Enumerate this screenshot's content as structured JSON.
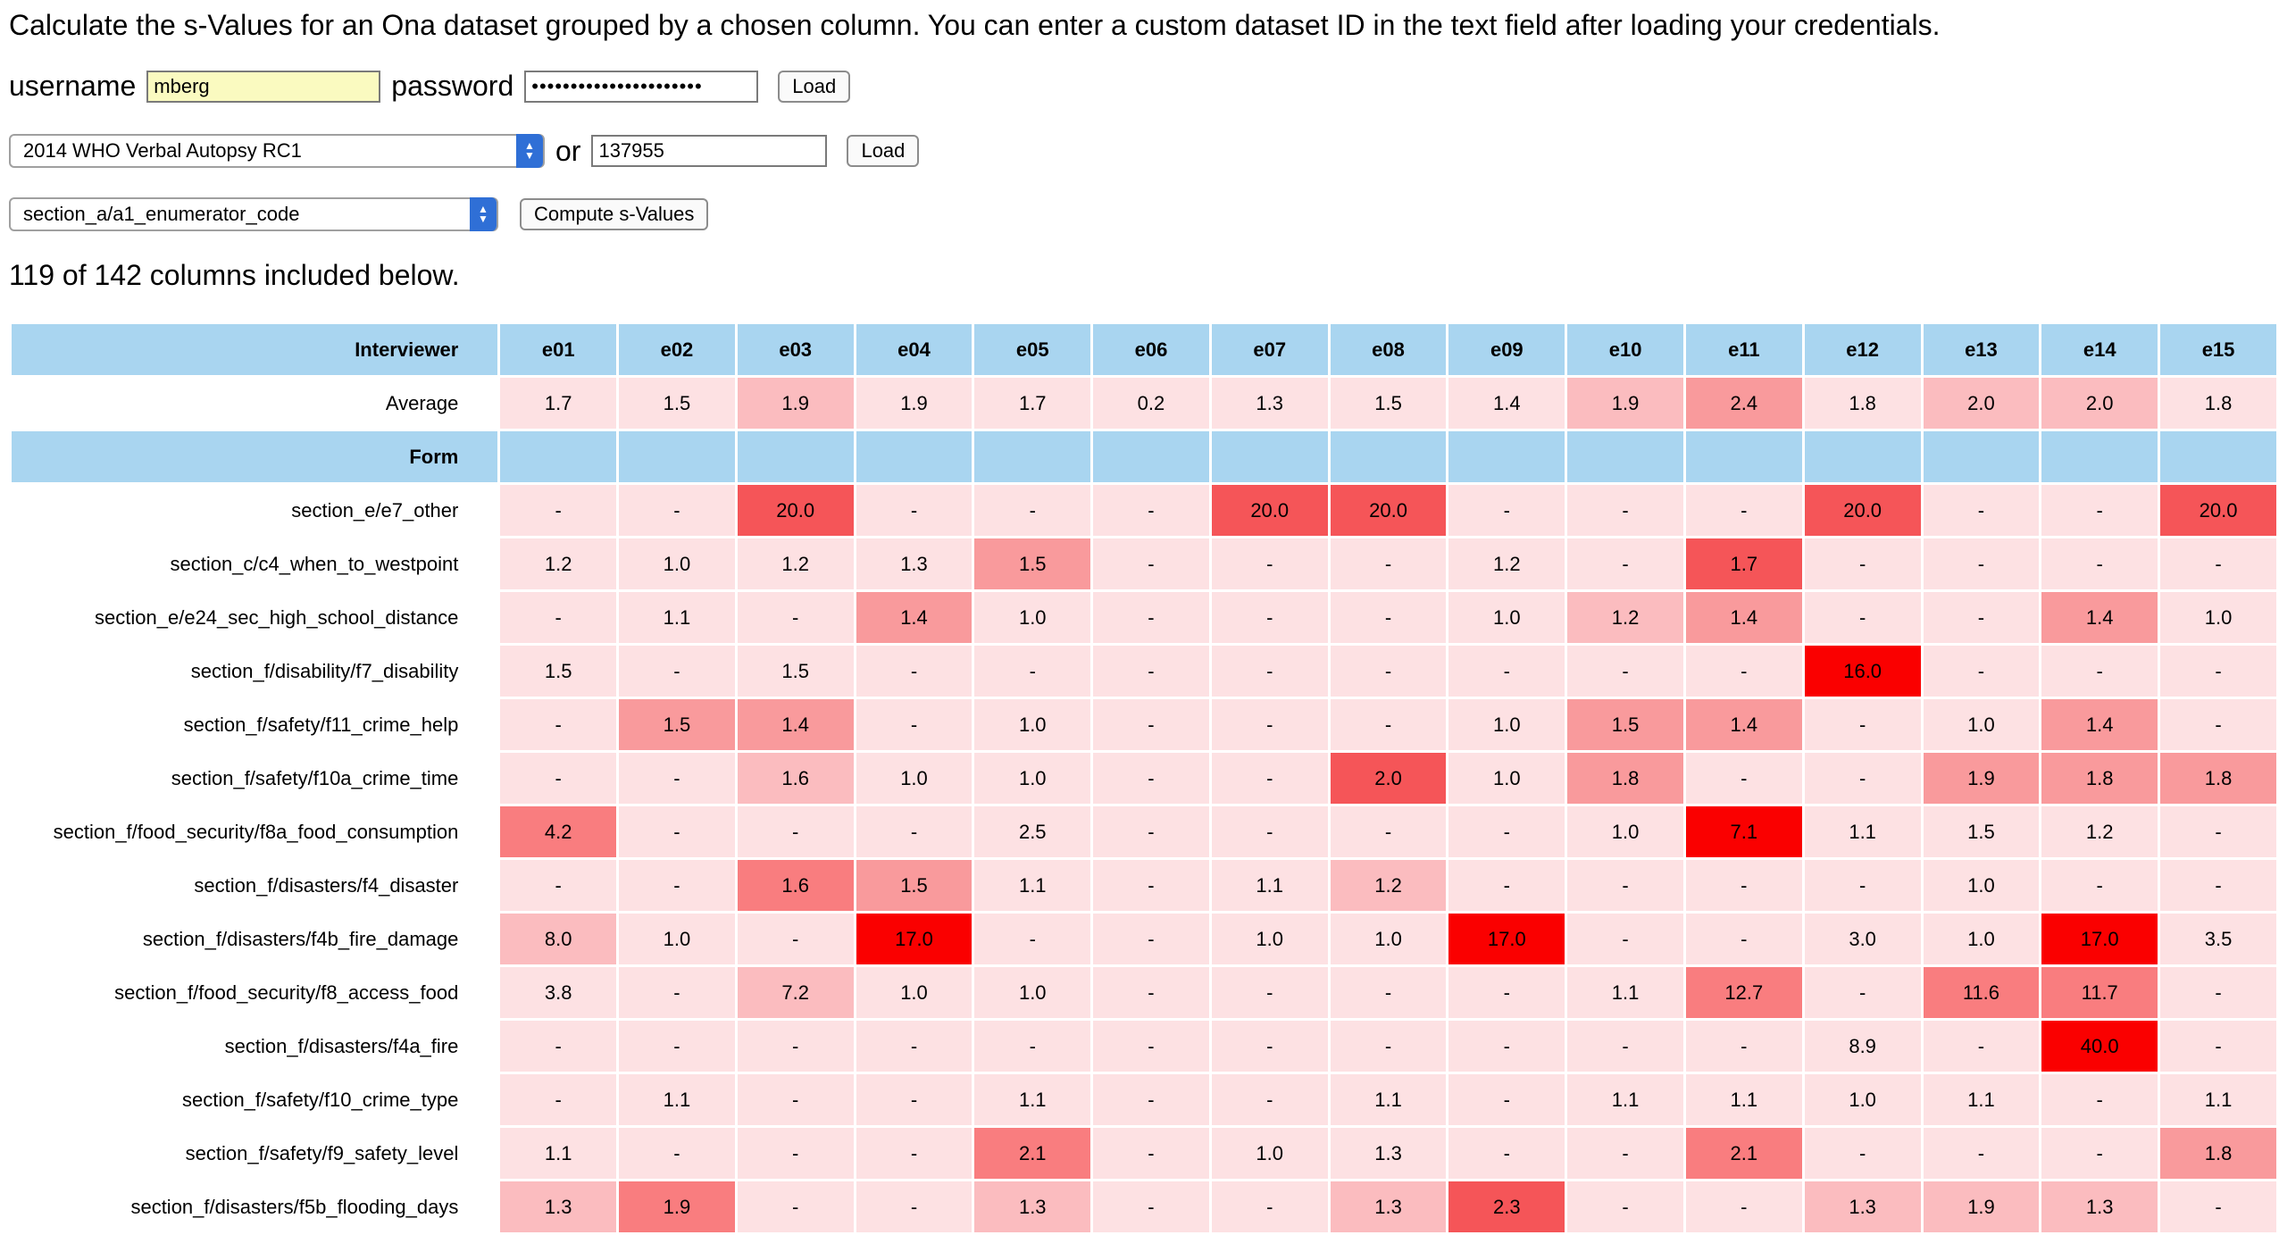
{
  "intro": "Calculate the s-Values for an Ona dataset grouped by a chosen column. You can enter a custom dataset ID in the text field after loading your credentials.",
  "credentials": {
    "username_label": "username",
    "username_value": "mberg",
    "password_label": "password",
    "password_value": "••••••••••••••••••••••",
    "load_label": "Load"
  },
  "dataset": {
    "selected": "2014 WHO Verbal Autopsy RC1",
    "or_label": "or",
    "id_value": "137955",
    "load_label": "Load"
  },
  "group": {
    "selected": "section_a/a1_enumerator_code",
    "compute_label": "Compute s-Values"
  },
  "summary": "119 of 142 columns included below.",
  "table": {
    "interviewer_label": "Interviewer",
    "average_label": "Average",
    "form_label": "Form",
    "interviewers": [
      "e01",
      "e02",
      "e03",
      "e04",
      "e05",
      "e06",
      "e07",
      "e08",
      "e09",
      "e10",
      "e11",
      "e12",
      "e13",
      "e14",
      "e15"
    ],
    "averages": [
      "1.7",
      "1.5",
      "1.9",
      "1.9",
      "1.7",
      "0.2",
      "1.3",
      "1.5",
      "1.4",
      "1.9",
      "2.4",
      "1.8",
      "2.0",
      "2.0",
      "1.8"
    ],
    "rows": [
      {
        "label": "section_e/e7_other",
        "values": [
          "-",
          "-",
          "20.0",
          "-",
          "-",
          "-",
          "20.0",
          "20.0",
          "-",
          "-",
          "-",
          "20.0",
          "-",
          "-",
          "20.0"
        ]
      },
      {
        "label": "section_c/c4_when_to_westpoint",
        "values": [
          "1.2",
          "1.0",
          "1.2",
          "1.3",
          "1.5",
          "-",
          "-",
          "-",
          "1.2",
          "-",
          "1.7",
          "-",
          "-",
          "-",
          "-"
        ]
      },
      {
        "label": "section_e/e24_sec_high_school_distance",
        "values": [
          "-",
          "1.1",
          "-",
          "1.4",
          "1.0",
          "-",
          "-",
          "-",
          "1.0",
          "1.2",
          "1.4",
          "-",
          "-",
          "1.4",
          "1.0"
        ]
      },
      {
        "label": "section_f/disability/f7_disability",
        "values": [
          "1.5",
          "-",
          "1.5",
          "-",
          "-",
          "-",
          "-",
          "-",
          "-",
          "-",
          "-",
          "16.0",
          "-",
          "-",
          "-"
        ]
      },
      {
        "label": "section_f/safety/f11_crime_help",
        "values": [
          "-",
          "1.5",
          "1.4",
          "-",
          "1.0",
          "-",
          "-",
          "-",
          "1.0",
          "1.5",
          "1.4",
          "-",
          "1.0",
          "1.4",
          "-"
        ]
      },
      {
        "label": "section_f/safety/f10a_crime_time",
        "values": [
          "-",
          "-",
          "1.6",
          "1.0",
          "1.0",
          "-",
          "-",
          "2.0",
          "1.0",
          "1.8",
          "-",
          "-",
          "1.9",
          "1.8",
          "1.8"
        ]
      },
      {
        "label": "section_f/food_security/f8a_food_consumption",
        "values": [
          "4.2",
          "-",
          "-",
          "-",
          "2.5",
          "-",
          "-",
          "-",
          "-",
          "1.0",
          "7.1",
          "1.1",
          "1.5",
          "1.2",
          "-"
        ]
      },
      {
        "label": "section_f/disasters/f4_disaster",
        "values": [
          "-",
          "-",
          "1.6",
          "1.5",
          "1.1",
          "-",
          "1.1",
          "1.2",
          "-",
          "-",
          "-",
          "-",
          "1.0",
          "-",
          "-"
        ]
      },
      {
        "label": "section_f/disasters/f4b_fire_damage",
        "values": [
          "8.0",
          "1.0",
          "-",
          "17.0",
          "-",
          "-",
          "1.0",
          "1.0",
          "17.0",
          "-",
          "-",
          "3.0",
          "1.0",
          "17.0",
          "3.5"
        ]
      },
      {
        "label": "section_f/food_security/f8_access_food",
        "values": [
          "3.8",
          "-",
          "7.2",
          "1.0",
          "1.0",
          "-",
          "-",
          "-",
          "-",
          "1.1",
          "12.7",
          "-",
          "11.6",
          "11.7",
          "-"
        ]
      },
      {
        "label": "section_f/disasters/f4a_fire",
        "values": [
          "-",
          "-",
          "-",
          "-",
          "-",
          "-",
          "-",
          "-",
          "-",
          "-",
          "-",
          "8.9",
          "-",
          "40.0",
          "-"
        ]
      },
      {
        "label": "section_f/safety/f10_crime_type",
        "values": [
          "-",
          "1.1",
          "-",
          "-",
          "1.1",
          "-",
          "-",
          "1.1",
          "-",
          "1.1",
          "1.1",
          "1.0",
          "1.1",
          "-",
          "1.1"
        ]
      },
      {
        "label": "section_f/safety/f9_safety_level",
        "values": [
          "1.1",
          "-",
          "-",
          "-",
          "2.1",
          "-",
          "1.0",
          "1.3",
          "-",
          "-",
          "2.1",
          "-",
          "-",
          "-",
          "1.8"
        ]
      },
      {
        "label": "section_f/disasters/f5b_flooding_days",
        "values": [
          "1.3",
          "1.9",
          "-",
          "-",
          "1.3",
          "-",
          "-",
          "1.3",
          "2.3",
          "-",
          "-",
          "1.3",
          "1.9",
          "1.3",
          "-"
        ]
      }
    ],
    "shades": {
      "base": "#fde1e3",
      "light": "#fbbcbf",
      "mid": "#f99a9c",
      "strong": "#f97d7f",
      "darker": "#f55558",
      "max": "#fa0000"
    },
    "row_shades": [
      [
        "base",
        "base",
        "darker",
        "base",
        "base",
        "base",
        "darker",
        "darker",
        "base",
        "base",
        "base",
        "darker",
        "base",
        "base",
        "darker"
      ],
      [
        "base",
        "base",
        "base",
        "base",
        "mid",
        "base",
        "base",
        "base",
        "base",
        "base",
        "darker",
        "base",
        "base",
        "base",
        "base"
      ],
      [
        "base",
        "base",
        "base",
        "mid",
        "base",
        "base",
        "base",
        "base",
        "base",
        "light",
        "mid",
        "base",
        "base",
        "mid",
        "base"
      ],
      [
        "base",
        "base",
        "base",
        "base",
        "base",
        "base",
        "base",
        "base",
        "base",
        "base",
        "base",
        "max",
        "base",
        "base",
        "base"
      ],
      [
        "base",
        "mid",
        "mid",
        "base",
        "base",
        "base",
        "base",
        "base",
        "base",
        "mid",
        "mid",
        "base",
        "base",
        "mid",
        "base"
      ],
      [
        "base",
        "base",
        "light",
        "base",
        "base",
        "base",
        "base",
        "darker",
        "base",
        "mid",
        "base",
        "base",
        "mid",
        "mid",
        "mid"
      ],
      [
        "strong",
        "base",
        "base",
        "base",
        "base",
        "base",
        "base",
        "base",
        "base",
        "base",
        "max",
        "base",
        "base",
        "base",
        "base"
      ],
      [
        "base",
        "base",
        "strong",
        "mid",
        "base",
        "base",
        "base",
        "light",
        "base",
        "base",
        "base",
        "base",
        "base",
        "base",
        "base"
      ],
      [
        "light",
        "base",
        "base",
        "max",
        "base",
        "base",
        "base",
        "base",
        "max",
        "base",
        "base",
        "base",
        "base",
        "max",
        "base"
      ],
      [
        "base",
        "base",
        "light",
        "base",
        "base",
        "base",
        "base",
        "base",
        "base",
        "base",
        "strong",
        "base",
        "strong",
        "strong",
        "base"
      ],
      [
        "base",
        "base",
        "base",
        "base",
        "base",
        "base",
        "base",
        "base",
        "base",
        "base",
        "base",
        "base",
        "base",
        "max",
        "base"
      ],
      [
        "base",
        "base",
        "base",
        "base",
        "base",
        "base",
        "base",
        "base",
        "base",
        "base",
        "base",
        "base",
        "base",
        "base",
        "base"
      ],
      [
        "base",
        "base",
        "base",
        "base",
        "strong",
        "base",
        "base",
        "base",
        "base",
        "base",
        "strong",
        "base",
        "base",
        "base",
        "mid"
      ],
      [
        "light",
        "strong",
        "base",
        "base",
        "light",
        "base",
        "base",
        "light",
        "darker",
        "base",
        "base",
        "light",
        "light",
        "light",
        "base"
      ]
    ],
    "average_shades": [
      "base",
      "base",
      "light",
      "base",
      "base",
      "base",
      "base",
      "base",
      "base",
      "light",
      "mid",
      "base",
      "light",
      "light",
      "base"
    ]
  }
}
